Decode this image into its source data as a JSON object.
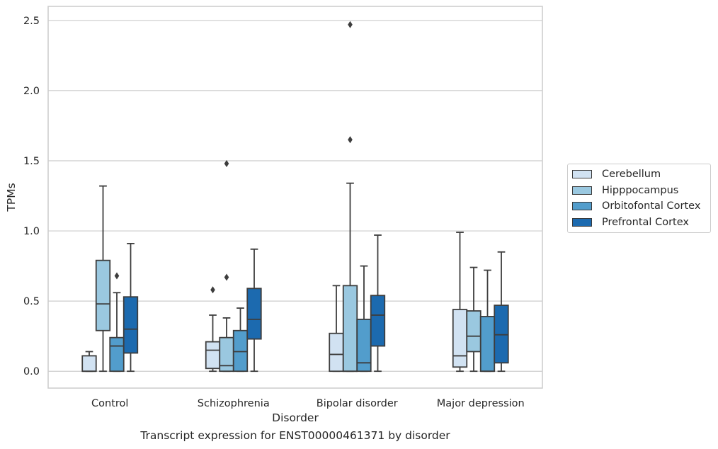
{
  "chart_data": {
    "type": "box",
    "title": "",
    "caption": "Transcript expression for ENST00000461371 by disorder",
    "xlabel": "Disorder",
    "ylabel": "TPMs",
    "ylim": [
      -0.12,
      2.6
    ],
    "yticks": [
      "0.0",
      "0.5",
      "1.0",
      "1.5",
      "2.0",
      "2.5"
    ],
    "grid": true,
    "legend_position": "right",
    "categories": [
      "Control",
      "Schizophrenia",
      "Bipolar disorder",
      "Major depression"
    ],
    "series": [
      {
        "name": "Cerebellum",
        "color": "#d1e2f2",
        "boxes": [
          {
            "whisker_low": 0.0,
            "q1": 0.0,
            "median": 0.0,
            "q3": 0.11,
            "whisker_high": 0.14,
            "outliers": []
          },
          {
            "whisker_low": 0.0,
            "q1": 0.02,
            "median": 0.15,
            "q3": 0.21,
            "whisker_high": 0.4,
            "outliers": [
              0.58
            ]
          },
          {
            "whisker_low": 0.0,
            "q1": 0.0,
            "median": 0.12,
            "q3": 0.27,
            "whisker_high": 0.61,
            "outliers": []
          },
          {
            "whisker_low": 0.0,
            "q1": 0.03,
            "median": 0.11,
            "q3": 0.44,
            "whisker_high": 0.99,
            "outliers": []
          }
        ]
      },
      {
        "name": "Hipppocampus",
        "color": "#9ac8e0",
        "boxes": [
          {
            "whisker_low": 0.0,
            "q1": 0.29,
            "median": 0.48,
            "q3": 0.79,
            "whisker_high": 1.32,
            "outliers": []
          },
          {
            "whisker_low": 0.0,
            "q1": 0.0,
            "median": 0.04,
            "q3": 0.24,
            "whisker_high": 0.38,
            "outliers": [
              0.67,
              1.48
            ]
          },
          {
            "whisker_low": 0.0,
            "q1": 0.0,
            "median": 0.0,
            "q3": 0.61,
            "whisker_high": 1.34,
            "outliers": [
              1.65,
              2.47
            ]
          },
          {
            "whisker_low": 0.0,
            "q1": 0.14,
            "median": 0.25,
            "q3": 0.43,
            "whisker_high": 0.74,
            "outliers": []
          }
        ]
      },
      {
        "name": "Orbitofontal Cortex",
        "color": "#529dcc",
        "boxes": [
          {
            "whisker_low": 0.0,
            "q1": 0.0,
            "median": 0.18,
            "q3": 0.24,
            "whisker_high": 0.56,
            "outliers": [
              0.68
            ]
          },
          {
            "whisker_low": 0.0,
            "q1": 0.0,
            "median": 0.14,
            "q3": 0.29,
            "whisker_high": 0.45,
            "outliers": []
          },
          {
            "whisker_low": 0.0,
            "q1": 0.0,
            "median": 0.06,
            "q3": 0.37,
            "whisker_high": 0.75,
            "outliers": []
          },
          {
            "whisker_low": 0.0,
            "q1": 0.0,
            "median": 0.0,
            "q3": 0.39,
            "whisker_high": 0.72,
            "outliers": []
          }
        ]
      },
      {
        "name": "Prefrontal Cortex",
        "color": "#1c6aaf",
        "boxes": [
          {
            "whisker_low": 0.0,
            "q1": 0.13,
            "median": 0.3,
            "q3": 0.53,
            "whisker_high": 0.91,
            "outliers": []
          },
          {
            "whisker_low": 0.0,
            "q1": 0.23,
            "median": 0.37,
            "q3": 0.59,
            "whisker_high": 0.87,
            "outliers": []
          },
          {
            "whisker_low": 0.0,
            "q1": 0.18,
            "median": 0.4,
            "q3": 0.54,
            "whisker_high": 0.97,
            "outliers": []
          },
          {
            "whisker_low": 0.0,
            "q1": 0.06,
            "median": 0.26,
            "q3": 0.47,
            "whisker_high": 0.85,
            "outliers": []
          }
        ]
      }
    ]
  }
}
